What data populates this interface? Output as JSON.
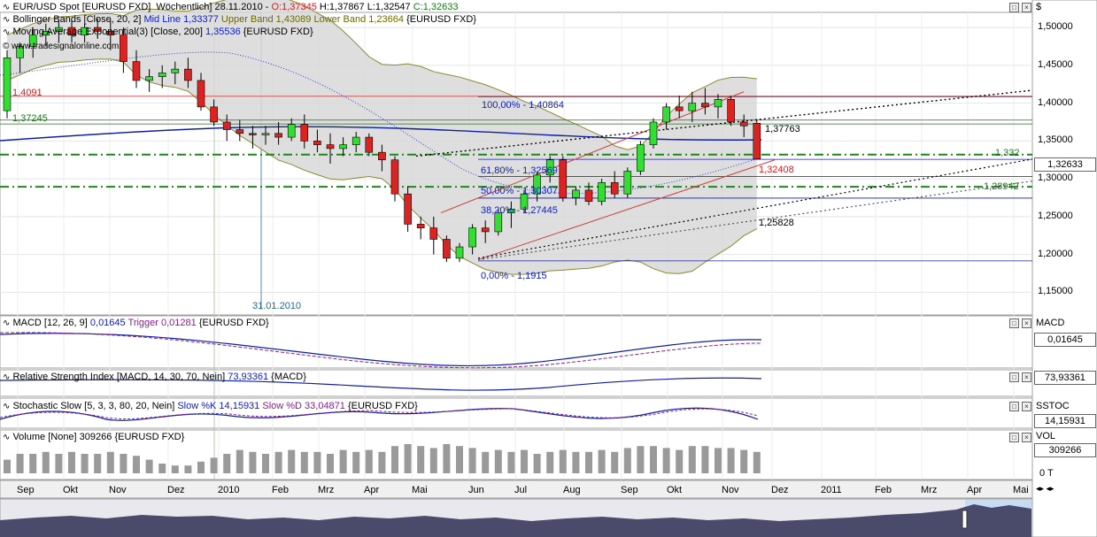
{
  "legends": {
    "main_symbol": "EUR/USD Spot [EURUSD FXD]  Wöchentlich] 28.11.2010 - ",
    "main_ohlc_o": "O:1,37345",
    "main_ohlc_h": "H:1,37867",
    "main_ohlc_l": "L:1,32547",
    "main_ohlc_c": "C:1,32633",
    "bb_name": "Bollinger Bands [Close, 20, 2] ",
    "bb_mid": "Mid Line 1,33377 ",
    "bb_upper": "Upper Band 1,43089 ",
    "bb_lower": "Lower Band 1,23664 ",
    "bb_src": "{EURUSD FXD}",
    "ema_name": "Moving Average Exponential(3) [Close, 200] ",
    "ema_value": "1,35536",
    "ema_src": " {EURUSD FXD}",
    "site": "www.tradesignalonline.com",
    "macd_name": "MACD [12, 26, 9] ",
    "macd_value": "0,01645",
    "macd_trigger": " Trigger 0,01281",
    "macd_src": " {EURUSD FXD}",
    "rsi_name": "Relative Strength Index [MACD, 14, 30, 70, Nein] ",
    "rsi_value": "73,93361",
    "rsi_src": " {MACD}",
    "stoch_name": "Stochastic Slow [5, 3, 3, 80, 20, Nein] ",
    "stoch_k": "Slow %K 14,15931",
    "stoch_d": " Slow %D 33,04871",
    "stoch_src": " {EURUSD FXD}",
    "vol_name": "Volume [None] ",
    "vol_value": "309266",
    "vol_src": " {EURUSD FXD}"
  },
  "axis_tags": {
    "price_currency": "$",
    "last_price": "1,32633",
    "macd_title": "MACD",
    "macd_value": "0,01645",
    "rsi_value": "73,93361",
    "stoch_title": "SSTOC",
    "stoch_value": "14,15931",
    "vol_title": "VOL",
    "vol_value": "309266",
    "vol_zero": "0 T"
  },
  "annotations": {
    "fib_100": "100,00% - 1,40864",
    "fib_618": "61,80% - 1,32569",
    "fib_50": "50,00% - 1,30307",
    "fib_382": "38,20% - 1,27445",
    "fib_0": "0,00% - 1,1915",
    "lvl_14091": "1,4091",
    "lvl_137245": "1,37245",
    "lvl_137763": "1,37763",
    "lvl_1332": "1,332",
    "lvl_132408": "1,32408",
    "lvl_128942": "1,28942",
    "lvl_125828": "1,25828",
    "date_marker": "31.01.2010"
  },
  "colors": {
    "up_candle": "#33dd33",
    "down_candle": "#dd2222",
    "bollinger_fill": "#d8d8d8",
    "bollinger_band": "#8a8a30",
    "ema": "#1020a0",
    "fib_line": "#1020a0",
    "resistance": "#d04040",
    "support_dash": "#1a8a1a",
    "volume_bar": "#9a9a9a"
  },
  "chart_data": {
    "type": "candlestick",
    "title": "EUR/USD Spot [EURUSD FXD] Wöchentlich",
    "price_axis": {
      "min": 1.12,
      "max": 1.52,
      "ticks": [
        1.15,
        1.2,
        1.25,
        1.3,
        1.35,
        1.4,
        1.45,
        1.5
      ],
      "tick_labels": [
        "1,15000",
        "1,20000",
        "1,25000",
        "1,30000",
        "1,35000",
        "1,40000",
        "1,45000",
        "1,50000"
      ]
    },
    "x_labels": [
      "Sep",
      "Okt",
      "Nov",
      "Dez",
      "2010",
      "Feb",
      "Mrz",
      "Apr",
      "Mai",
      "Jun",
      "Jul",
      "Aug",
      "Sep",
      "Okt",
      "Nov",
      "Dez",
      "2011",
      "Feb",
      "Mrz",
      "Apr",
      "Mai"
    ],
    "candles": [
      [
        1.39,
        1.47,
        1.38,
        1.46
      ],
      [
        1.46,
        1.48,
        1.44,
        1.475
      ],
      [
        1.475,
        1.5,
        1.46,
        1.49
      ],
      [
        1.49,
        1.505,
        1.475,
        1.495
      ],
      [
        1.495,
        1.51,
        1.48,
        1.5
      ],
      [
        1.5,
        1.51,
        1.48,
        1.49
      ],
      [
        1.49,
        1.505,
        1.48,
        1.5
      ],
      [
        1.5,
        1.512,
        1.485,
        1.495
      ],
      [
        1.495,
        1.51,
        1.47,
        1.49
      ],
      [
        1.49,
        1.5,
        1.44,
        1.455
      ],
      [
        1.455,
        1.47,
        1.42,
        1.43
      ],
      [
        1.43,
        1.445,
        1.415,
        1.435
      ],
      [
        1.435,
        1.45,
        1.42,
        1.44
      ],
      [
        1.44,
        1.455,
        1.425,
        1.445
      ],
      [
        1.445,
        1.46,
        1.42,
        1.43
      ],
      [
        1.43,
        1.44,
        1.39,
        1.395
      ],
      [
        1.395,
        1.405,
        1.37,
        1.375
      ],
      [
        1.375,
        1.385,
        1.35,
        1.365
      ],
      [
        1.365,
        1.378,
        1.35,
        1.36
      ],
      [
        1.36,
        1.37,
        1.34,
        1.358
      ],
      [
        1.358,
        1.37,
        1.345,
        1.36
      ],
      [
        1.36,
        1.375,
        1.345,
        1.355
      ],
      [
        1.355,
        1.38,
        1.35,
        1.372
      ],
      [
        1.372,
        1.385,
        1.34,
        1.35
      ],
      [
        1.35,
        1.365,
        1.335,
        1.345
      ],
      [
        1.345,
        1.36,
        1.32,
        1.34
      ],
      [
        1.34,
        1.355,
        1.33,
        1.345
      ],
      [
        1.345,
        1.362,
        1.335,
        1.355
      ],
      [
        1.355,
        1.36,
        1.33,
        1.335
      ],
      [
        1.335,
        1.345,
        1.31,
        1.325
      ],
      [
        1.325,
        1.33,
        1.27,
        1.28
      ],
      [
        1.28,
        1.29,
        1.23,
        1.24
      ],
      [
        1.24,
        1.25,
        1.22,
        1.235
      ],
      [
        1.235,
        1.25,
        1.2,
        1.22
      ],
      [
        1.22,
        1.225,
        1.19,
        1.195
      ],
      [
        1.195,
        1.215,
        1.19,
        1.21
      ],
      [
        1.21,
        1.24,
        1.2,
        1.235
      ],
      [
        1.235,
        1.245,
        1.215,
        1.23
      ],
      [
        1.23,
        1.26,
        1.225,
        1.255
      ],
      [
        1.255,
        1.27,
        1.235,
        1.26
      ],
      [
        1.26,
        1.285,
        1.255,
        1.28
      ],
      [
        1.28,
        1.31,
        1.27,
        1.305
      ],
      [
        1.305,
        1.33,
        1.295,
        1.325
      ],
      [
        1.325,
        1.33,
        1.27,
        1.275
      ],
      [
        1.275,
        1.29,
        1.265,
        1.285
      ],
      [
        1.285,
        1.295,
        1.265,
        1.27
      ],
      [
        1.27,
        1.3,
        1.265,
        1.295
      ],
      [
        1.295,
        1.31,
        1.275,
        1.28
      ],
      [
        1.28,
        1.315,
        1.275,
        1.31
      ],
      [
        1.31,
        1.35,
        1.305,
        1.345
      ],
      [
        1.345,
        1.38,
        1.34,
        1.375
      ],
      [
        1.375,
        1.4,
        1.365,
        1.395
      ],
      [
        1.395,
        1.41,
        1.38,
        1.39
      ],
      [
        1.39,
        1.415,
        1.375,
        1.4
      ],
      [
        1.4,
        1.42,
        1.385,
        1.395
      ],
      [
        1.395,
        1.412,
        1.38,
        1.405
      ],
      [
        1.405,
        1.41,
        1.37,
        1.375
      ],
      [
        1.375,
        1.385,
        1.355,
        1.37
      ],
      [
        1.37345,
        1.37867,
        1.32547,
        1.32633
      ]
    ],
    "volume_series": [
      0.35,
      0.5,
      0.5,
      0.55,
      0.5,
      0.55,
      0.5,
      0.5,
      0.55,
      0.5,
      0.45,
      0.35,
      0.25,
      0.2,
      0.2,
      0.3,
      0.4,
      0.5,
      0.6,
      0.55,
      0.5,
      0.55,
      0.6,
      0.55,
      0.55,
      0.5,
      0.6,
      0.55,
      0.6,
      0.55,
      0.7,
      0.75,
      0.7,
      0.65,
      0.75,
      0.7,
      0.65,
      0.55,
      0.6,
      0.55,
      0.6,
      0.5,
      0.55,
      0.6,
      0.55,
      0.55,
      0.6,
      0.55,
      0.65,
      0.7,
      0.7,
      0.65,
      0.6,
      0.7,
      0.7,
      0.65,
      0.65,
      0.6,
      0.55
    ]
  }
}
